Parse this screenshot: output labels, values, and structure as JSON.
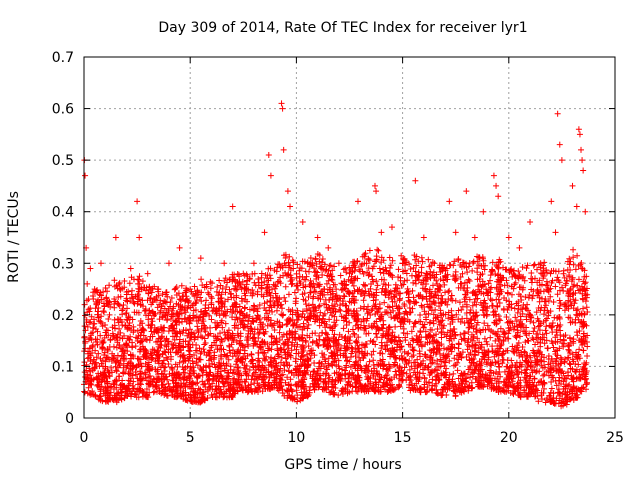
{
  "chart_data": {
    "type": "scatter",
    "title": "Day 309 of 2014, Rate Of TEC Index for receiver lyr1",
    "xlabel": "GPS time / hours",
    "ylabel": "ROTI / TECUs",
    "xlim": [
      0,
      25
    ],
    "ylim": [
      0,
      0.7
    ],
    "x_ticks": [
      0,
      5,
      10,
      15,
      20,
      25
    ],
    "y_ticks": [
      0,
      0.1,
      0.2,
      0.3,
      0.4,
      0.5,
      0.6,
      0.7
    ],
    "x_tick_labels": [
      "0",
      "5",
      "10",
      "15",
      "20",
      "25"
    ],
    "y_tick_labels": [
      "0",
      "0.1",
      "0.2",
      "0.3",
      "0.4",
      "0.5",
      "0.6",
      "0.7"
    ],
    "grid": true,
    "marker": "+",
    "marker_color": "#ff0000",
    "series": [
      {
        "name": "lyr1",
        "x": [
          0.02,
          0.05,
          0.1,
          0.15,
          0.3,
          0.5,
          0.8,
          1.2,
          1.5,
          1.8,
          2.2,
          2.5,
          2.6,
          3.0,
          3.5,
          4.0,
          4.2,
          4.5,
          5.0,
          5.5,
          6.0,
          6.6,
          7.0,
          7.5,
          8.0,
          8.5,
          8.7,
          8.8,
          9.3,
          9.35,
          9.4,
          9.6,
          9.7,
          10.3,
          11.0,
          11.5,
          12.0,
          12.5,
          12.9,
          13.7,
          13.75,
          14.0,
          14.5,
          15.0,
          15.6,
          16.0,
          16.5,
          17.2,
          17.5,
          18.0,
          18.4,
          18.8,
          19.3,
          19.4,
          19.5,
          20.0,
          20.5,
          21.0,
          21.5,
          22.0,
          22.2,
          22.3,
          22.4,
          22.5,
          23.0,
          23.2,
          23.3,
          23.35,
          23.4,
          23.45,
          23.5,
          23.6
        ],
        "y": [
          0.5,
          0.47,
          0.33,
          0.26,
          0.29,
          0.25,
          0.3,
          0.2,
          0.35,
          0.18,
          0.29,
          0.42,
          0.35,
          0.28,
          0.25,
          0.3,
          0.2,
          0.33,
          0.25,
          0.31,
          0.22,
          0.3,
          0.41,
          0.28,
          0.3,
          0.36,
          0.51,
          0.47,
          0.61,
          0.6,
          0.52,
          0.44,
          0.41,
          0.38,
          0.35,
          0.33,
          0.3,
          0.28,
          0.42,
          0.45,
          0.44,
          0.36,
          0.37,
          0.3,
          0.46,
          0.35,
          0.3,
          0.42,
          0.36,
          0.44,
          0.35,
          0.4,
          0.47,
          0.45,
          0.43,
          0.35,
          0.33,
          0.38,
          0.3,
          0.42,
          0.36,
          0.59,
          0.53,
          0.5,
          0.45,
          0.41,
          0.56,
          0.55,
          0.52,
          0.5,
          0.48,
          0.4
        ],
        "band": {
          "x": [
            0,
            0.5,
            1,
            1.5,
            2,
            2.5,
            3,
            3.5,
            4,
            4.5,
            5,
            5.5,
            6,
            6.5,
            7,
            7.5,
            8,
            8.5,
            9,
            9.5,
            10,
            10.5,
            11,
            11.5,
            12,
            12.5,
            13,
            13.5,
            14,
            14.5,
            15,
            15.5,
            16,
            16.5,
            17,
            17.5,
            18,
            18.5,
            19,
            19.5,
            20,
            20.5,
            21,
            21.5,
            22,
            22.5,
            23,
            23.5
          ],
          "low": [
            0.05,
            0.04,
            0.03,
            0.03,
            0.04,
            0.04,
            0.04,
            0.05,
            0.04,
            0.04,
            0.03,
            0.03,
            0.04,
            0.04,
            0.04,
            0.05,
            0.05,
            0.05,
            0.06,
            0.04,
            0.03,
            0.04,
            0.06,
            0.05,
            0.04,
            0.05,
            0.05,
            0.05,
            0.05,
            0.05,
            0.06,
            0.05,
            0.05,
            0.05,
            0.04,
            0.04,
            0.05,
            0.06,
            0.06,
            0.05,
            0.05,
            0.04,
            0.04,
            0.03,
            0.03,
            0.02,
            0.03,
            0.05
          ],
          "high": [
            0.22,
            0.25,
            0.26,
            0.27,
            0.27,
            0.28,
            0.27,
            0.25,
            0.25,
            0.26,
            0.25,
            0.27,
            0.27,
            0.27,
            0.28,
            0.28,
            0.28,
            0.29,
            0.3,
            0.32,
            0.3,
            0.31,
            0.32,
            0.3,
            0.29,
            0.3,
            0.31,
            0.33,
            0.33,
            0.31,
            0.32,
            0.32,
            0.31,
            0.31,
            0.3,
            0.31,
            0.31,
            0.32,
            0.31,
            0.31,
            0.29,
            0.29,
            0.3,
            0.31,
            0.29,
            0.29,
            0.33,
            0.3
          ]
        }
      }
    ]
  }
}
